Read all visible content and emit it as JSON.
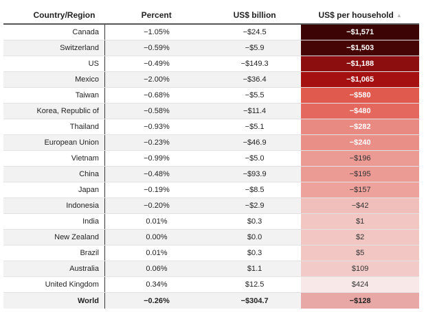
{
  "table": {
    "headers": {
      "country": "Country/Region",
      "percent": "Percent",
      "billion": "US$ billion",
      "household": "US$ per household"
    },
    "sort_icon": "sort-ascending-icon",
    "rows": [
      {
        "country": "Canada",
        "percent": "−1.05%",
        "billion": "−$24.5",
        "household": "−$1,571",
        "color": "#3c0404"
      },
      {
        "country": "Switzerland",
        "percent": "−0.59%",
        "billion": "−$5.9",
        "household": "−$1,503",
        "color": "#460505"
      },
      {
        "country": "US",
        "percent": "−0.49%",
        "billion": "−$149.3",
        "household": "−$1,188",
        "color": "#8c0e0e"
      },
      {
        "country": "Mexico",
        "percent": "−2.00%",
        "billion": "−$36.4",
        "household": "−$1,065",
        "color": "#a51010"
      },
      {
        "country": "Taiwan",
        "percent": "−0.68%",
        "billion": "−$5.5",
        "household": "−$580",
        "color": "#e05a4e"
      },
      {
        "country": "Korea, Republic of",
        "percent": "−0.58%",
        "billion": "−$11.4",
        "household": "−$480",
        "color": "#e4685d"
      },
      {
        "country": "Thailand",
        "percent": "−0.93%",
        "billion": "−$5.1",
        "household": "−$282",
        "color": "#e98a82"
      },
      {
        "country": "European Union",
        "percent": "−0.23%",
        "billion": "−$46.9",
        "household": "−$240",
        "color": "#ea8f88"
      },
      {
        "country": "Vietnam",
        "percent": "−0.99%",
        "billion": "−$5.0",
        "household": "−$196",
        "color": "#ec9a94"
      },
      {
        "country": "China",
        "percent": "−0.48%",
        "billion": "−$93.9",
        "household": "−$195",
        "color": "#ec9a94"
      },
      {
        "country": "Japan",
        "percent": "−0.19%",
        "billion": "−$8.5",
        "household": "−$157",
        "color": "#eda29c"
      },
      {
        "country": "Indonesia",
        "percent": "−0.20%",
        "billion": "−$2.9",
        "household": "−$42",
        "color": "#f0bfbb"
      },
      {
        "country": "India",
        "percent": "0.01%",
        "billion": "$0.3",
        "household": "$1",
        "color": "#f1c6c3"
      },
      {
        "country": "New Zealand",
        "percent": "0.00%",
        "billion": "$0.0",
        "household": "$2",
        "color": "#f1c6c3"
      },
      {
        "country": "Brazil",
        "percent": "0.01%",
        "billion": "$0.3",
        "household": "$5",
        "color": "#f1c6c3"
      },
      {
        "country": "Australia",
        "percent": "0.06%",
        "billion": "$1.1",
        "household": "$109",
        "color": "#f2cbc8"
      },
      {
        "country": "United Kingdom",
        "percent": "0.34%",
        "billion": "$12.5",
        "household": "$424",
        "color": "#f8e8e7"
      }
    ],
    "total": {
      "country": "World",
      "percent": "−0.26%",
      "billion": "−$304.7",
      "household": "−$128"
    }
  }
}
